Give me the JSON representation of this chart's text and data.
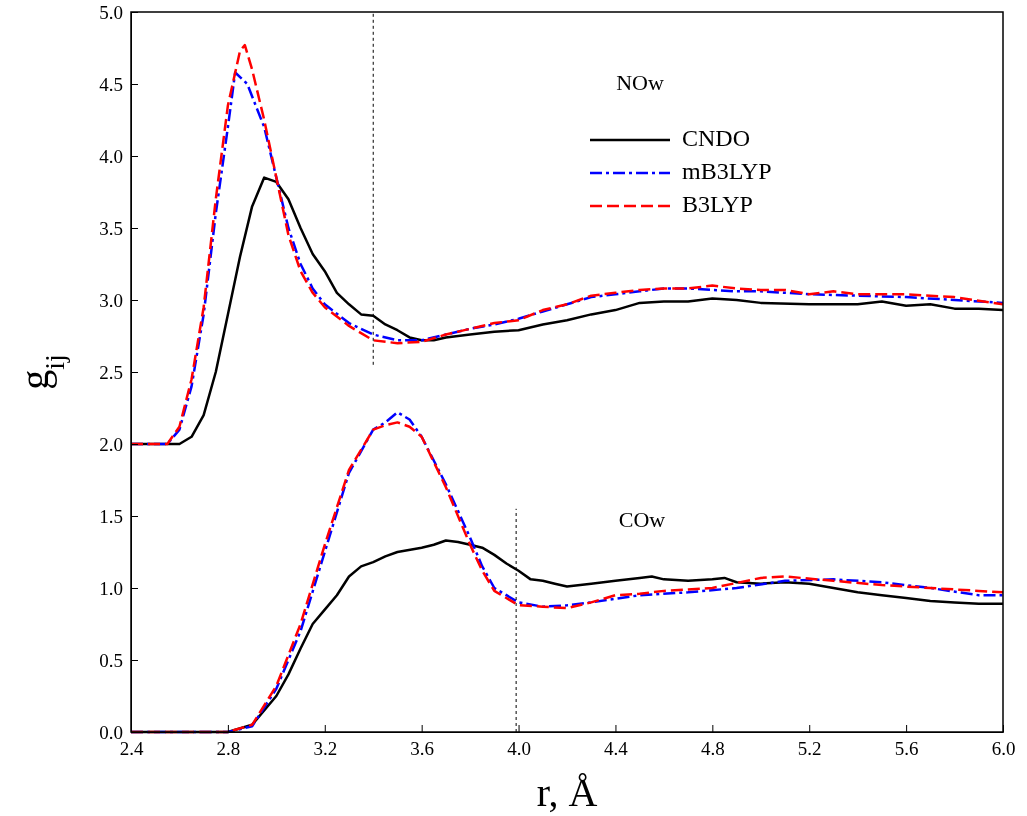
{
  "chart_data": {
    "type": "line",
    "xlabel": "r, Å",
    "ylabel": "g$_{ij}$",
    "xlim": [
      2.4,
      6.0
    ],
    "ylim": [
      0,
      5.0
    ],
    "xticks": [
      2.4,
      2.8,
      3.2,
      3.6,
      {
        "value": 4,
        "label": "4.0"
      },
      4.4,
      4.8,
      5.2,
      5.6,
      {
        "value": 6,
        "label": "6.0"
      }
    ],
    "yticks": [
      {
        "value": 0,
        "label": "0.0"
      },
      0.5,
      {
        "value": 1,
        "label": "1.0"
      },
      1.5,
      {
        "value": 2,
        "label": "2.0"
      },
      2.5,
      {
        "value": 3,
        "label": "3.0"
      },
      3.5,
      {
        "value": 4,
        "label": "4.0"
      },
      4.5,
      {
        "value": 5,
        "label": "5.0"
      }
    ],
    "grid": false,
    "legend": "top right",
    "annotations": [
      "NOw",
      "COw"
    ],
    "series": [
      {
        "name": "CNDO",
        "color": "#000000",
        "line_style": "solid",
        "x": [
          2.4,
          2.6,
          2.65,
          2.7,
          2.75,
          2.8,
          2.85,
          2.9,
          2.95,
          3.0,
          3.05,
          3.1,
          3.15,
          3.2,
          3.25,
          3.3,
          3.35,
          3.4,
          3.45,
          3.5,
          3.55,
          3.6,
          3.65,
          3.7,
          3.8,
          3.9,
          4.0,
          4.1,
          4.2,
          4.3,
          4.4,
          4.5,
          4.6,
          4.7,
          4.8,
          4.9,
          5.0,
          5.2,
          5.4,
          5.5,
          5.6,
          5.7,
          5.8,
          5.9,
          6.0
        ],
        "values": [
          2.0,
          2.0,
          2.05,
          2.2,
          2.5,
          2.9,
          3.3,
          3.65,
          3.85,
          3.82,
          3.7,
          3.5,
          3.32,
          3.2,
          3.05,
          2.97,
          2.9,
          2.89,
          2.83,
          2.79,
          2.74,
          2.72,
          2.72,
          2.74,
          2.76,
          2.78,
          2.79,
          2.83,
          2.86,
          2.9,
          2.93,
          2.98,
          2.99,
          2.99,
          3.01,
          3.0,
          2.98,
          2.97,
          2.97,
          2.99,
          2.96,
          2.97,
          2.94,
          2.94,
          2.93
        ]
      },
      {
        "name": "mB3LYP",
        "color": "#0000ff",
        "line_style": "dashdot",
        "x": [
          2.4,
          2.55,
          2.6,
          2.65,
          2.7,
          2.75,
          2.8,
          2.83,
          2.88,
          2.95,
          3.0,
          3.05,
          3.1,
          3.15,
          3.2,
          3.3,
          3.4,
          3.5,
          3.6,
          3.7,
          3.8,
          3.9,
          4.0,
          4.1,
          4.2,
          4.3,
          4.4,
          4.5,
          4.6,
          4.7,
          4.8,
          4.9,
          5.0,
          5.2,
          5.4,
          5.6,
          5.8,
          6.0
        ],
        "values": [
          2.0,
          2.0,
          2.1,
          2.4,
          2.9,
          3.6,
          4.2,
          4.58,
          4.5,
          4.2,
          3.85,
          3.5,
          3.25,
          3.08,
          2.97,
          2.84,
          2.76,
          2.72,
          2.72,
          2.76,
          2.8,
          2.83,
          2.87,
          2.92,
          2.97,
          3.02,
          3.04,
          3.06,
          3.08,
          3.08,
          3.07,
          3.06,
          3.06,
          3.04,
          3.03,
          3.02,
          3.0,
          2.98
        ]
      },
      {
        "name": "B3LYP",
        "color": "#ff0000",
        "line_style": "dashed",
        "x": [
          2.4,
          2.55,
          2.6,
          2.65,
          2.7,
          2.75,
          2.8,
          2.85,
          2.87,
          2.9,
          2.95,
          3.0,
          3.05,
          3.1,
          3.15,
          3.2,
          3.3,
          3.4,
          3.5,
          3.6,
          3.7,
          3.8,
          3.9,
          4.0,
          4.1,
          4.2,
          4.3,
          4.4,
          4.5,
          4.6,
          4.7,
          4.8,
          4.9,
          5.0,
          5.1,
          5.2,
          5.3,
          5.4,
          5.6,
          5.8,
          6.0
        ],
        "values": [
          2.0,
          2.0,
          2.12,
          2.45,
          2.95,
          3.7,
          4.35,
          4.73,
          4.77,
          4.6,
          4.25,
          3.85,
          3.45,
          3.2,
          3.05,
          2.95,
          2.82,
          2.72,
          2.7,
          2.71,
          2.76,
          2.8,
          2.84,
          2.86,
          2.93,
          2.97,
          3.03,
          3.05,
          3.07,
          3.08,
          3.08,
          3.1,
          3.08,
          3.07,
          3.07,
          3.04,
          3.06,
          3.04,
          3.04,
          3.02,
          2.97
        ]
      },
      {
        "color": "#000000",
        "line_style": "solid",
        "x": [
          2.4,
          2.8,
          2.9,
          3.0,
          3.05,
          3.1,
          3.15,
          3.2,
          3.25,
          3.3,
          3.35,
          3.4,
          3.45,
          3.5,
          3.6,
          3.65,
          3.7,
          3.75,
          3.8,
          3.85,
          3.9,
          3.95,
          4.0,
          4.05,
          4.1,
          4.15,
          4.2,
          4.3,
          4.4,
          4.5,
          4.55,
          4.6,
          4.7,
          4.8,
          4.85,
          4.9,
          5.0,
          5.1,
          5.2,
          5.3,
          5.4,
          5.5,
          5.6,
          5.7,
          5.8,
          5.9,
          6.0
        ],
        "values": [
          0,
          0,
          0.05,
          0.25,
          0.4,
          0.58,
          0.75,
          0.85,
          0.95,
          1.08,
          1.15,
          1.18,
          1.22,
          1.25,
          1.28,
          1.3,
          1.33,
          1.32,
          1.3,
          1.28,
          1.23,
          1.17,
          1.12,
          1.06,
          1.05,
          1.03,
          1.01,
          1.03,
          1.05,
          1.07,
          1.08,
          1.06,
          1.05,
          1.06,
          1.07,
          1.04,
          1.03,
          1.04,
          1.03,
          1.0,
          0.97,
          0.95,
          0.93,
          0.91,
          0.9,
          0.89,
          0.89
        ]
      },
      {
        "color": "#0000ff",
        "line_style": "dashdot",
        "x": [
          2.4,
          2.8,
          2.9,
          3.0,
          3.1,
          3.2,
          3.3,
          3.4,
          3.45,
          3.5,
          3.55,
          3.6,
          3.7,
          3.8,
          3.85,
          3.9,
          4.0,
          4.1,
          4.2,
          4.3,
          4.5,
          4.7,
          4.9,
          5.1,
          5.3,
          5.5,
          5.7,
          5.9,
          6.0
        ],
        "values": [
          0,
          0,
          0.04,
          0.3,
          0.7,
          1.25,
          1.8,
          2.1,
          2.15,
          2.22,
          2.17,
          2.05,
          1.72,
          1.35,
          1.15,
          1.0,
          0.9,
          0.87,
          0.88,
          0.9,
          0.95,
          0.97,
          1.0,
          1.05,
          1.06,
          1.04,
          1.0,
          0.95,
          0.95
        ]
      },
      {
        "color": "#ff0000",
        "line_style": "dashed",
        "x": [
          2.4,
          2.8,
          2.9,
          3.0,
          3.1,
          3.2,
          3.3,
          3.4,
          3.45,
          3.5,
          3.55,
          3.6,
          3.7,
          3.8,
          3.85,
          3.9,
          4.0,
          4.1,
          4.2,
          4.3,
          4.4,
          4.5,
          4.6,
          4.8,
          5.0,
          5.1,
          5.3,
          5.5,
          5.7,
          5.9,
          6.0
        ],
        "values": [
          0,
          0,
          0.05,
          0.32,
          0.75,
          1.3,
          1.82,
          2.1,
          2.13,
          2.15,
          2.12,
          2.05,
          1.7,
          1.3,
          1.12,
          0.98,
          0.88,
          0.87,
          0.86,
          0.9,
          0.95,
          0.96,
          0.98,
          1.0,
          1.07,
          1.08,
          1.05,
          1.02,
          1.0,
          0.98,
          0.97
        ]
      },
      {
        "color": "#000000",
        "line_style": "dotted",
        "x": [
          3.4,
          3.4
        ],
        "values": [
          2.55,
          5.0
        ]
      },
      {
        "color": "#000000",
        "line_style": "dotted",
        "x": [
          3.99,
          3.99
        ],
        "values": [
          0,
          1.55
        ]
      }
    ]
  }
}
